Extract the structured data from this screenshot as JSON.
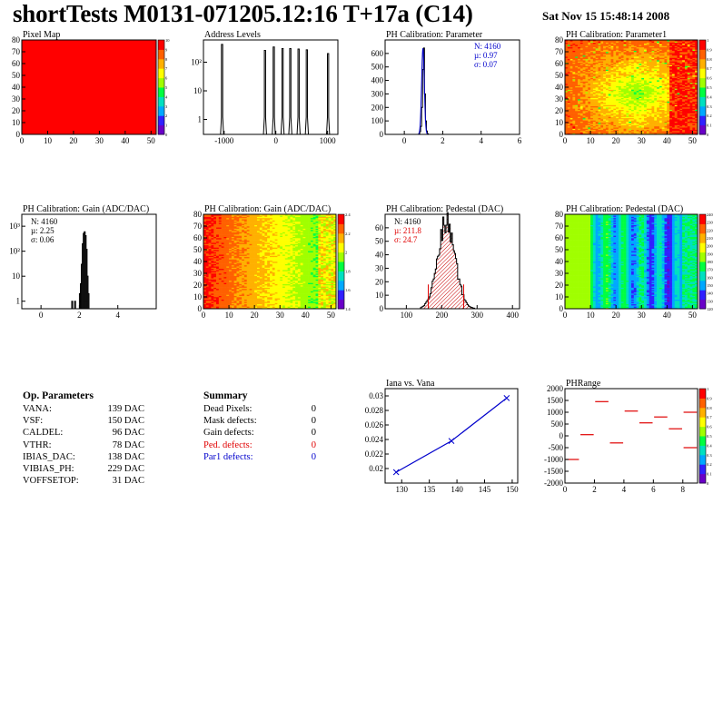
{
  "header": {
    "title": "shortTests M0131-071205.12:16 T+17a (C14)",
    "date": "Sat Nov 15 15:48:14 2008"
  },
  "colors": {
    "hist_line": "#000000",
    "fit_blue": "#0000cc",
    "defect_red": "#e00000",
    "hatch_red": "#c80000",
    "palette": [
      "#6a00c8",
      "#3020ff",
      "#00a8ff",
      "#00e0c0",
      "#00ff40",
      "#a0ff00",
      "#ffff00",
      "#ffb000",
      "#ff6000",
      "#ff0000"
    ]
  },
  "chart_data": [
    {
      "type": "heatmap",
      "title": "Pixel Map",
      "xlim": [
        0,
        52
      ],
      "ylim": [
        0,
        80
      ],
      "xticks": [
        "0",
        "10",
        "20",
        "30",
        "40",
        "50"
      ],
      "yticks": [
        "0",
        "10",
        "20",
        "30",
        "40",
        "50",
        "60",
        "70",
        "80"
      ],
      "zlim": [
        0,
        10
      ],
      "ztick_labels": [
        "0",
        "1",
        "2",
        "3",
        "4",
        "5",
        "6",
        "7",
        "8",
        "9",
        "10"
      ],
      "uniform_value": 10,
      "grid": false
    },
    {
      "type": "bar",
      "title": "Address Levels",
      "log_y": true,
      "xlim": [
        -1400,
        1200
      ],
      "xticks": [
        "-1000",
        "0",
        "1000"
      ],
      "yticks": [
        "1",
        "10",
        "10²"
      ],
      "ylim": [
        0.3,
        600
      ],
      "peaks": [
        {
          "x": -1040,
          "h": 420
        },
        {
          "x": -210,
          "h": 260
        },
        {
          "x": -40,
          "h": 340
        },
        {
          "x": 130,
          "h": 300
        },
        {
          "x": 280,
          "h": 300
        },
        {
          "x": 440,
          "h": 290
        },
        {
          "x": 600,
          "h": 270
        },
        {
          "x": 1010,
          "h": 200
        }
      ]
    },
    {
      "type": "bar",
      "title": "PH Calibration: Parameter",
      "xlim": [
        -1,
        6
      ],
      "ylim": [
        0,
        700
      ],
      "xticks": [
        "0",
        "2",
        "4",
        "6"
      ],
      "yticks": [
        "0",
        "100",
        "200",
        "300",
        "400",
        "500",
        "600"
      ],
      "stats": [
        "N: 4160",
        "µ: 0.97",
        "σ: 0.07"
      ],
      "bins_x": [
        0.75,
        0.8,
        0.85,
        0.9,
        0.95,
        1.0,
        1.05,
        1.1,
        1.15,
        1.2
      ],
      "bins_y": [
        5,
        20,
        60,
        200,
        480,
        640,
        300,
        100,
        25,
        5
      ]
    },
    {
      "type": "heatmap",
      "title": "PH Calibration: Parameter1",
      "xlim": [
        0,
        52
      ],
      "ylim": [
        0,
        80
      ],
      "xticks": [
        "0",
        "10",
        "20",
        "30",
        "40",
        "50"
      ],
      "yticks": [
        "0",
        "10",
        "20",
        "30",
        "40",
        "50",
        "60",
        "70",
        "80"
      ],
      "zlim": [
        0,
        1
      ],
      "ztick_labels": [
        "0",
        "0.1",
        "0.2",
        "0.3",
        "0.4",
        "0.5",
        "0.6",
        "0.7",
        "0.8",
        "0.9",
        "1"
      ],
      "grid": false
    },
    {
      "type": "bar",
      "title": "PH Calibration: Gain (ADC/DAC)",
      "log_y": true,
      "xlim": [
        -1,
        6
      ],
      "xticks": [
        "0",
        "2",
        "4"
      ],
      "yticks": [
        "1",
        "10",
        "10²",
        "10³"
      ],
      "stats": [
        "N: 4160",
        "µ: 2.25",
        "σ: 0.06"
      ],
      "bins_x": [
        1.6,
        1.75,
        2.0,
        2.05,
        2.1,
        2.15,
        2.2,
        2.25,
        2.3,
        2.35,
        2.4,
        2.45
      ],
      "bins_y": [
        1,
        1,
        2,
        5,
        30,
        200,
        520,
        600,
        420,
        120,
        10,
        2
      ]
    },
    {
      "type": "heatmap",
      "title": "PH Calibration: Gain (ADC/DAC)",
      "xlim": [
        0,
        52
      ],
      "ylim": [
        0,
        80
      ],
      "xticks": [
        "0",
        "10",
        "20",
        "30",
        "40",
        "50"
      ],
      "yticks": [
        "0",
        "10",
        "20",
        "30",
        "40",
        "50",
        "60",
        "70",
        "80"
      ],
      "zlim": [
        1.4,
        2.6
      ],
      "ztick_labels": [
        "1.4",
        "1.6",
        "1.8",
        "2",
        "2.2",
        "2.4"
      ],
      "grid": false
    },
    {
      "type": "bar",
      "title": "PH Calibration: Pedestal (DAC)",
      "xlim": [
        40,
        420
      ],
      "ylim": [
        0,
        70
      ],
      "xticks": [
        "100",
        "200",
        "300",
        "400"
      ],
      "yticks": [
        "0",
        "10",
        "20",
        "30",
        "40",
        "50",
        "60"
      ],
      "stats": [
        "N: 4160",
        "µ: 211.8",
        "σ: 24.7"
      ],
      "mean": 211.8,
      "sigma": 24.7,
      "peak": 63,
      "cut_lines_x": [
        162,
        262
      ]
    },
    {
      "type": "heatmap",
      "title": "PH Calibration: Pedestal (DAC)",
      "xlim": [
        0,
        52
      ],
      "ylim": [
        0,
        80
      ],
      "xticks": [
        "0",
        "10",
        "20",
        "30",
        "40",
        "50"
      ],
      "yticks": [
        "0",
        "10",
        "20",
        "30",
        "40",
        "50",
        "60",
        "70",
        "80"
      ],
      "zlim": [
        120,
        240
      ],
      "ztick_labels": [
        "120",
        "130",
        "140",
        "150",
        "160",
        "170",
        "180",
        "190",
        "200",
        "210",
        "220",
        "230",
        "240"
      ],
      "grid": false
    },
    {
      "type": "line",
      "title": "Iana vs. Vana",
      "xlim": [
        127,
        151
      ],
      "ylim": [
        0.018,
        0.031
      ],
      "xticks": [
        "130",
        "135",
        "140",
        "145",
        "150"
      ],
      "yticks": [
        "0.02",
        "0.022",
        "0.024",
        "0.026",
        "0.028",
        "0.03"
      ],
      "x": [
        129,
        139,
        149
      ],
      "y": [
        0.0195,
        0.0238,
        0.0297
      ]
    },
    {
      "type": "scatter",
      "title": "PHRange",
      "xlim": [
        0,
        9
      ],
      "ylim": [
        -2000,
        2000
      ],
      "xticks": [
        "0",
        "2",
        "4",
        "6",
        "8"
      ],
      "yticks": [
        "-2000",
        "-1500",
        "-1000",
        "-500",
        "0",
        "500",
        "1000",
        "1500",
        "2000"
      ],
      "zlim": [
        0,
        1
      ],
      "ztick_labels": [
        "0",
        "0.1",
        "0.2",
        "0.3",
        "0.4",
        "0.5",
        "0.6",
        "0.7",
        "0.8",
        "0.9",
        "1"
      ],
      "points": [
        {
          "x": 0.5,
          "y": -1000
        },
        {
          "x": 1.5,
          "y": 50
        },
        {
          "x": 2.5,
          "y": 1450
        },
        {
          "x": 3.5,
          "y": -300
        },
        {
          "x": 4.5,
          "y": 1050
        },
        {
          "x": 5.5,
          "y": 550
        },
        {
          "x": 6.5,
          "y": 800
        },
        {
          "x": 7.5,
          "y": 300
        },
        {
          "x": 8.5,
          "y": 1000
        },
        {
          "x": 8.5,
          "y": -500
        }
      ]
    }
  ],
  "op_parameters": {
    "title": "Op. Parameters",
    "rows": [
      {
        "name": "VANA:",
        "value": "139 DAC"
      },
      {
        "name": "VSF:",
        "value": "150 DAC"
      },
      {
        "name": "CALDEL:",
        "value": "96 DAC"
      },
      {
        "name": "VTHR:",
        "value": "78 DAC"
      },
      {
        "name": "IBIAS_DAC:",
        "value": "138 DAC"
      },
      {
        "name": "VIBIAS_PH:",
        "value": "229 DAC"
      },
      {
        "name": "VOFFSETOP:",
        "value": "31 DAC"
      }
    ]
  },
  "summary": {
    "title": "Summary",
    "rows": [
      {
        "name": "Dead Pixels:",
        "value": "0",
        "color": "#000000"
      },
      {
        "name": "Mask defects:",
        "value": "0",
        "color": "#000000"
      },
      {
        "name": "Gain defects:",
        "value": "0",
        "color": "#000000"
      },
      {
        "name": "Ped. defects:",
        "value": "0",
        "color": "#e00000"
      },
      {
        "name": "Par1 defects:",
        "value": "0",
        "color": "#0000cc"
      }
    ]
  }
}
